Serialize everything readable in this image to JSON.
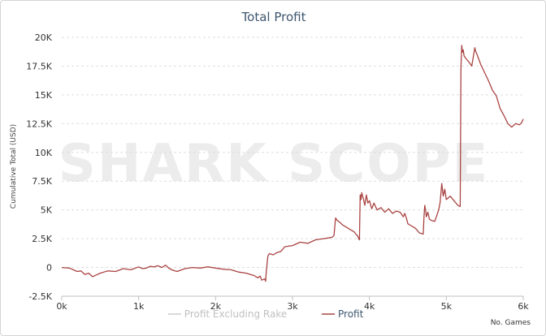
{
  "watermark": "SHARK SCOPE",
  "chart_data": {
    "type": "line",
    "title": "Total Profit",
    "xlabel": "No. Games",
    "ylabel": "Cumulative Total (USD)",
    "xlim": [
      0,
      6000
    ],
    "ylim": [
      -2500,
      20000
    ],
    "x_ticks": [
      "0k",
      "1k",
      "2k",
      "3k",
      "4k",
      "5k",
      "6k"
    ],
    "y_ticks": [
      "20K",
      "17.5K",
      "15K",
      "12.5K",
      "10K",
      "7.5K",
      "5K",
      "2.5K",
      "0",
      "-2.5K"
    ],
    "grid": true,
    "legend_position": "bottom",
    "series": [
      {
        "name": "Profit Excluding Rake",
        "color": "#cccccc",
        "visible": false,
        "x": [],
        "y": []
      },
      {
        "name": "Profit",
        "color": "#a94442",
        "visible": true,
        "x": [
          0,
          100,
          200,
          250,
          300,
          350,
          400,
          450,
          500,
          600,
          700,
          800,
          900,
          1000,
          1050,
          1100,
          1150,
          1200,
          1250,
          1300,
          1350,
          1400,
          1450,
          1500,
          1600,
          1700,
          1800,
          1900,
          2000,
          2100,
          2200,
          2300,
          2400,
          2450,
          2500,
          2550,
          2580,
          2600,
          2640,
          2650,
          2660,
          2680,
          2700,
          2750,
          2800,
          2850,
          2900,
          3000,
          3100,
          3200,
          3300,
          3400,
          3500,
          3520,
          3540,
          3560,
          3580,
          3600,
          3620,
          3650,
          3700,
          3750,
          3800,
          3850,
          3860,
          3870,
          3880,
          3890,
          3900,
          3920,
          3940,
          3960,
          3980,
          4000,
          4030,
          4060,
          4100,
          4150,
          4200,
          4250,
          4300,
          4350,
          4400,
          4420,
          4440,
          4460,
          4480,
          4500,
          4550,
          4600,
          4650,
          4700,
          4710,
          4720,
          4730,
          4740,
          4760,
          4780,
          4800,
          4850,
          4900,
          4920,
          4940,
          4960,
          4980,
          5000,
          5050,
          5100,
          5150,
          5180,
          5190,
          5200,
          5210,
          5220,
          5230,
          5250,
          5300,
          5330,
          5350,
          5370,
          5380,
          5400,
          5450,
          5500,
          5550,
          5600,
          5650,
          5700,
          5750,
          5800,
          5850,
          5900,
          5950,
          5980,
          6000
        ],
        "y": [
          0,
          -50,
          -350,
          -300,
          -600,
          -500,
          -800,
          -650,
          -500,
          -300,
          -350,
          -100,
          -200,
          50,
          -100,
          -50,
          100,
          50,
          150,
          0,
          200,
          -100,
          -250,
          -350,
          -100,
          0,
          -50,
          50,
          -50,
          -150,
          -200,
          -400,
          -500,
          -600,
          -700,
          -900,
          -750,
          -1100,
          -1000,
          -1200,
          -300,
          1000,
          1200,
          1100,
          1300,
          1400,
          1800,
          1900,
          2200,
          2100,
          2400,
          2500,
          2600,
          2650,
          2800,
          4300,
          4100,
          4000,
          3900,
          3700,
          3500,
          3300,
          3100,
          2700,
          2500,
          2400,
          6300,
          5900,
          6500,
          6000,
          5400,
          6300,
          5600,
          5800,
          5100,
          5600,
          5000,
          5200,
          4800,
          5100,
          4700,
          4900,
          4800,
          4600,
          4400,
          4700,
          4300,
          3800,
          3600,
          3400,
          3000,
          2900,
          4500,
          5400,
          5000,
          4400,
          4800,
          4200,
          4100,
          4000,
          5000,
          5700,
          7300,
          6200,
          6800,
          5900,
          6200,
          5800,
          5400,
          5300,
          17300,
          19300,
          18700,
          18900,
          18400,
          18200,
          17800,
          17500,
          18300,
          19100,
          18800,
          18500,
          17600,
          16900,
          16200,
          15400,
          14900,
          13800,
          13200,
          12500,
          12200,
          12500,
          12400,
          12600,
          12900
        ]
      }
    ]
  }
}
